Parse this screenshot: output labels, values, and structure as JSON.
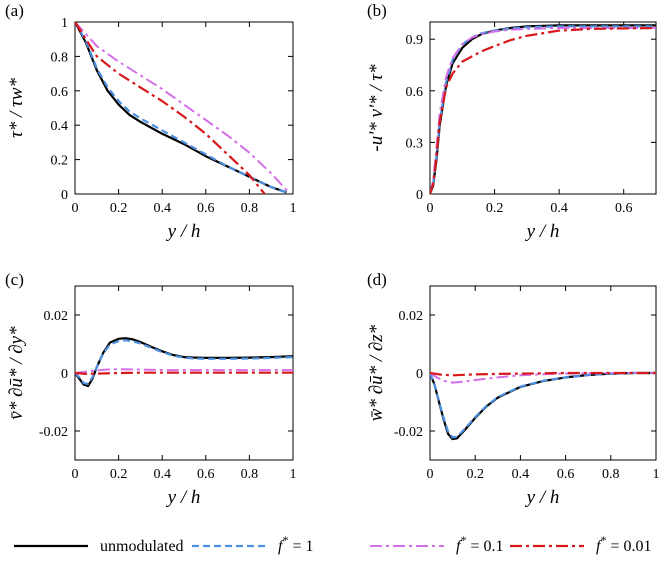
{
  "series_styles": [
    {
      "key": "unmod",
      "color": "#000000",
      "dash": "none",
      "width": 2.2
    },
    {
      "key": "f1",
      "color": "#4d8fe0",
      "dash": "7,4",
      "width": 2.2
    },
    {
      "key": "f01",
      "color": "#d36fe8",
      "dash": "12,4,3,4",
      "width": 2.0
    },
    {
      "key": "f001",
      "color": "#d7191c",
      "dash": "12,4,3,4",
      "width": 2.2
    }
  ],
  "legend": {
    "entries": [
      {
        "key": "unmod",
        "label": "unmodulated"
      },
      {
        "key": "f1",
        "label": "f* = 1",
        "sym": "f",
        "sup": "*",
        "rest": " = 1"
      },
      {
        "key": "f01",
        "label": "f* = 0.1",
        "sym": "f",
        "sup": "*",
        "rest": " = 0.1"
      },
      {
        "key": "f001",
        "label": "f* = 0.01",
        "sym": "f",
        "sup": "*",
        "rest": " = 0.01"
      }
    ]
  },
  "chart_data": [
    {
      "type": "line",
      "panel": "(a)",
      "xlabel": "y / h",
      "ylabel": "τ* / τw*",
      "xlim": [
        0,
        1
      ],
      "ylim": [
        0,
        1
      ],
      "xticks": [
        "0",
        "0.2",
        "0.4",
        "0.6",
        "0.8",
        "1"
      ],
      "yticks": [
        "0",
        "0.2",
        "0.4",
        "0.6",
        "0.8",
        "1"
      ],
      "xtick_values": [
        0,
        0.2,
        0.4,
        0.6,
        0.8,
        1
      ],
      "ytick_values": [
        0,
        0.2,
        0.4,
        0.6,
        0.8,
        1
      ],
      "series": [
        {
          "name": "unmodulated",
          "key": "unmod",
          "x": [
            0,
            0.05,
            0.1,
            0.15,
            0.2,
            0.25,
            0.3,
            0.4,
            0.5,
            0.6,
            0.7,
            0.8,
            0.9,
            0.97
          ],
          "y": [
            1,
            0.88,
            0.72,
            0.6,
            0.52,
            0.46,
            0.42,
            0.35,
            0.29,
            0.22,
            0.16,
            0.1,
            0.04,
            0.01
          ]
        },
        {
          "name": "f* = 1",
          "key": "f1",
          "x": [
            0,
            0.05,
            0.1,
            0.15,
            0.2,
            0.25,
            0.3,
            0.4,
            0.5,
            0.6,
            0.7,
            0.8,
            0.9,
            0.97
          ],
          "y": [
            1,
            0.89,
            0.73,
            0.62,
            0.54,
            0.48,
            0.44,
            0.37,
            0.3,
            0.23,
            0.16,
            0.1,
            0.04,
            0.01
          ]
        },
        {
          "name": "f* = 0.1",
          "key": "f01",
          "x": [
            0,
            0.1,
            0.2,
            0.3,
            0.4,
            0.5,
            0.6,
            0.7,
            0.8,
            0.9,
            0.98
          ],
          "y": [
            1,
            0.86,
            0.77,
            0.69,
            0.61,
            0.52,
            0.43,
            0.34,
            0.24,
            0.12,
            0.01
          ]
        },
        {
          "name": "f* = 0.01",
          "key": "f001",
          "x": [
            0,
            0.1,
            0.2,
            0.3,
            0.4,
            0.5,
            0.6,
            0.7,
            0.8,
            0.87
          ],
          "y": [
            1,
            0.8,
            0.7,
            0.62,
            0.54,
            0.45,
            0.35,
            0.23,
            0.11,
            0.0
          ]
        }
      ]
    },
    {
      "type": "line",
      "panel": "(b)",
      "xlabel": "y / h",
      "ylabel": "-u'* v'* / τ*",
      "xlim": [
        0,
        0.7
      ],
      "ylim": [
        0,
        1
      ],
      "xticks": [
        "0",
        "0.2",
        "0.4",
        "0.6"
      ],
      "yticks": [
        "0",
        "0.3",
        "0.6",
        "0.9"
      ],
      "xtick_values": [
        0,
        0.2,
        0.4,
        0.6
      ],
      "ytick_values": [
        0,
        0.3,
        0.6,
        0.9
      ],
      "series": [
        {
          "name": "unmodulated",
          "key": "unmod",
          "x": [
            0,
            0.01,
            0.02,
            0.03,
            0.05,
            0.07,
            0.1,
            0.13,
            0.16,
            0.2,
            0.25,
            0.3,
            0.4,
            0.5,
            0.7
          ],
          "y": [
            0,
            0.05,
            0.2,
            0.4,
            0.63,
            0.76,
            0.85,
            0.9,
            0.93,
            0.95,
            0.965,
            0.975,
            0.98,
            0.98,
            0.98
          ]
        },
        {
          "name": "f* = 1",
          "key": "f1",
          "x": [
            0,
            0.01,
            0.02,
            0.03,
            0.05,
            0.07,
            0.1,
            0.13,
            0.16,
            0.2,
            0.25,
            0.3,
            0.4,
            0.5,
            0.7
          ],
          "y": [
            0,
            0.06,
            0.22,
            0.42,
            0.65,
            0.78,
            0.87,
            0.91,
            0.935,
            0.95,
            0.962,
            0.97,
            0.975,
            0.975,
            0.975
          ]
        },
        {
          "name": "f* = 0.1",
          "key": "f01",
          "x": [
            0,
            0.01,
            0.02,
            0.03,
            0.05,
            0.07,
            0.1,
            0.13,
            0.16,
            0.2,
            0.25,
            0.3,
            0.4,
            0.5,
            0.7
          ],
          "y": [
            0,
            0.08,
            0.27,
            0.47,
            0.68,
            0.79,
            0.87,
            0.91,
            0.93,
            0.945,
            0.955,
            0.96,
            0.965,
            0.965,
            0.965
          ]
        },
        {
          "name": "f* = 0.01",
          "key": "f001",
          "x": [
            0,
            0.01,
            0.02,
            0.03,
            0.05,
            0.07,
            0.1,
            0.13,
            0.16,
            0.2,
            0.25,
            0.3,
            0.4,
            0.5,
            0.7
          ],
          "y": [
            0,
            0.06,
            0.22,
            0.42,
            0.62,
            0.7,
            0.77,
            0.8,
            0.83,
            0.86,
            0.895,
            0.92,
            0.95,
            0.96,
            0.965
          ]
        }
      ]
    },
    {
      "type": "line",
      "panel": "(c)",
      "xlabel": "y / h",
      "ylabel": "v̄* ∂ū* / ∂y*",
      "xlim": [
        0,
        1
      ],
      "ylim": [
        -0.03,
        0.03
      ],
      "xticks": [
        "0",
        "0.2",
        "0.4",
        "0.6",
        "0.8",
        "1"
      ],
      "yticks": [
        "-0.02",
        "0",
        "0.02"
      ],
      "xtick_values": [
        0,
        0.2,
        0.4,
        0.6,
        0.8,
        1
      ],
      "ytick_values": [
        -0.02,
        0,
        0.02
      ],
      "series": [
        {
          "name": "unmodulated",
          "key": "unmod",
          "x": [
            0,
            0.02,
            0.04,
            0.06,
            0.08,
            0.1,
            0.13,
            0.16,
            0.2,
            0.23,
            0.26,
            0.3,
            0.35,
            0.4,
            0.45,
            0.5,
            0.55,
            0.6,
            0.7,
            0.8,
            0.9,
            1
          ],
          "y": [
            0,
            -0.002,
            -0.004,
            -0.0045,
            -0.002,
            0.002,
            0.007,
            0.0105,
            0.0118,
            0.012,
            0.0117,
            0.0107,
            0.009,
            0.0075,
            0.0062,
            0.0055,
            0.0053,
            0.0052,
            0.0052,
            0.0053,
            0.0055,
            0.0058
          ]
        },
        {
          "name": "f* = 1",
          "key": "f1",
          "x": [
            0,
            0.02,
            0.04,
            0.06,
            0.08,
            0.1,
            0.13,
            0.16,
            0.2,
            0.23,
            0.26,
            0.3,
            0.35,
            0.4,
            0.45,
            0.5,
            0.55,
            0.6,
            0.7,
            0.8,
            0.9,
            1
          ],
          "y": [
            0,
            -0.0015,
            -0.0035,
            -0.0038,
            -0.0015,
            0.002,
            0.0068,
            0.0098,
            0.011,
            0.0113,
            0.011,
            0.0102,
            0.0087,
            0.0072,
            0.006,
            0.0053,
            0.005,
            0.0049,
            0.0049,
            0.005,
            0.0052,
            0.0055
          ]
        },
        {
          "name": "f* = 0.1",
          "key": "f01",
          "x": [
            0,
            0.05,
            0.1,
            0.15,
            0.2,
            0.3,
            0.4,
            0.5,
            0.6,
            0.7,
            0.8,
            0.9,
            1
          ],
          "y": [
            0,
            0.0004,
            0.0009,
            0.0012,
            0.0013,
            0.0012,
            0.001,
            0.001,
            0.001,
            0.001,
            0.001,
            0.001,
            0.001
          ]
        },
        {
          "name": "f* = 0.01",
          "key": "f001",
          "x": [
            0,
            0.05,
            0.1,
            0.2,
            0.3,
            0.4,
            0.5,
            0.6,
            0.7,
            0.8,
            0.9,
            1
          ],
          "y": [
            0,
            -0.0003,
            -0.0002,
            0.0,
            0.0001,
            0.0001,
            0.0001,
            0.0001,
            0.0001,
            0.0001,
            0.0001,
            0.0001
          ]
        }
      ]
    },
    {
      "type": "line",
      "panel": "(d)",
      "xlabel": "y / h",
      "ylabel": "w̄* ∂ū* / ∂z*",
      "xlim": [
        0,
        1
      ],
      "ylim": [
        -0.03,
        0.03
      ],
      "xticks": [
        "0",
        "0.2",
        "0.4",
        "0.6",
        "0.8",
        "1"
      ],
      "yticks": [
        "-0.02",
        "0",
        "0.02"
      ],
      "xtick_values": [
        0,
        0.2,
        0.4,
        0.6,
        0.8,
        1
      ],
      "ytick_values": [
        -0.02,
        0,
        0.02
      ],
      "series": [
        {
          "name": "unmodulated",
          "key": "unmod",
          "x": [
            0,
            0.02,
            0.04,
            0.06,
            0.08,
            0.1,
            0.12,
            0.15,
            0.2,
            0.25,
            0.3,
            0.4,
            0.5,
            0.6,
            0.7,
            0.8,
            0.9,
            1
          ],
          "y": [
            0,
            -0.004,
            -0.01,
            -0.016,
            -0.021,
            -0.0228,
            -0.0225,
            -0.02,
            -0.0155,
            -0.0115,
            -0.0085,
            -0.0048,
            -0.0028,
            -0.0015,
            -0.0007,
            -0.0002,
            0,
            0
          ]
        },
        {
          "name": "f* = 1",
          "key": "f1",
          "x": [
            0,
            0.02,
            0.04,
            0.06,
            0.08,
            0.1,
            0.12,
            0.15,
            0.2,
            0.25,
            0.3,
            0.4,
            0.5,
            0.6,
            0.7,
            0.8,
            0.9,
            1
          ],
          "y": [
            0,
            -0.004,
            -0.0097,
            -0.0155,
            -0.0202,
            -0.0222,
            -0.022,
            -0.0196,
            -0.0152,
            -0.0113,
            -0.0083,
            -0.0047,
            -0.0027,
            -0.0015,
            -0.0007,
            -0.0002,
            0,
            0
          ]
        },
        {
          "name": "f* = 0.1",
          "key": "f01",
          "x": [
            0,
            0.03,
            0.06,
            0.1,
            0.15,
            0.2,
            0.3,
            0.4,
            0.5,
            0.6,
            0.8,
            1
          ],
          "y": [
            0,
            -0.0015,
            -0.0027,
            -0.0033,
            -0.003,
            -0.0024,
            -0.0015,
            -0.0008,
            -0.0004,
            -0.0002,
            0,
            0
          ]
        },
        {
          "name": "f* = 0.01",
          "key": "f001",
          "x": [
            0,
            0.05,
            0.1,
            0.2,
            0.3,
            0.4,
            0.5,
            0.6,
            0.8,
            1
          ],
          "y": [
            0,
            -0.0006,
            -0.0008,
            -0.0005,
            -0.0003,
            -0.0002,
            -0.0001,
            0,
            0,
            0
          ]
        }
      ]
    }
  ]
}
